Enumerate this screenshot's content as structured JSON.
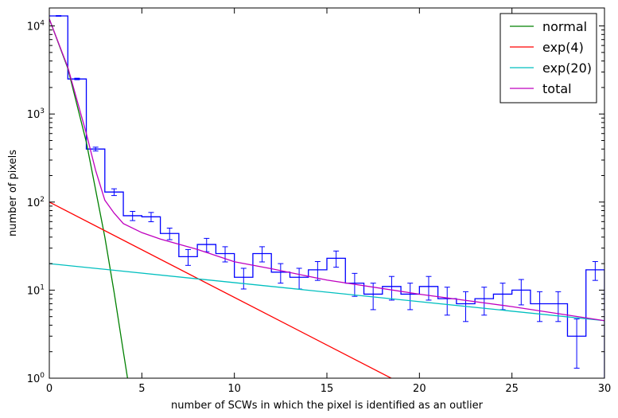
{
  "chart_data": {
    "type": "line",
    "title": "",
    "xlabel": "number of SCWs in which the pixel is identified as an outlier",
    "ylabel": "number of pixels",
    "xlim": [
      0,
      30
    ],
    "ylim": [
      1,
      16000
    ],
    "yscale": "log",
    "grid": false,
    "legend_position": "top-right",
    "x_ticks": [
      0,
      5,
      10,
      15,
      20,
      25,
      30
    ],
    "x_tick_labels": [
      "0",
      "5",
      "10",
      "15",
      "20",
      "25",
      "30"
    ],
    "y_ticks": [
      1,
      10,
      100,
      1000,
      10000
    ],
    "y_tick_labels": [
      {
        "base": "10",
        "exp": "0"
      },
      {
        "base": "10",
        "exp": "1"
      },
      {
        "base": "10",
        "exp": "2"
      },
      {
        "base": "10",
        "exp": "3"
      },
      {
        "base": "10",
        "exp": "4"
      }
    ],
    "histogram": {
      "color": "#0000ff",
      "bin_width": 1,
      "x": [
        0,
        1,
        2,
        3,
        4,
        5,
        6,
        7,
        8,
        9,
        10,
        11,
        12,
        13,
        14,
        15,
        16,
        17,
        18,
        19,
        20,
        21,
        22,
        23,
        24,
        25,
        26,
        27,
        28,
        29
      ],
      "values": [
        13000,
        2500,
        400,
        130,
        70,
        68,
        44,
        24,
        33,
        26,
        14,
        26,
        16,
        14,
        17,
        23,
        12,
        9,
        11,
        9,
        11,
        8,
        7,
        8,
        9,
        10,
        7,
        7,
        3,
        17
      ],
      "errors": [
        114,
        50,
        20,
        11.4,
        8.4,
        8.2,
        6.6,
        4.9,
        5.7,
        5.1,
        3.7,
        5.1,
        4,
        3.7,
        4.1,
        4.8,
        3.5,
        3,
        3.3,
        3,
        3.3,
        2.8,
        2.6,
        2.8,
        3,
        3.2,
        2.6,
        2.6,
        1.7,
        4.1
      ]
    },
    "series": [
      {
        "name": "normal",
        "color": "#008000",
        "x": [
          0,
          1,
          2,
          3,
          3.5,
          4,
          4.3
        ],
        "values": [
          12000,
          3300,
          480,
          40,
          9.5,
          2.0,
          0.8
        ]
      },
      {
        "name": "exp(4)",
        "color": "#ff0000",
        "x": [
          0,
          18.9
        ],
        "values": [
          100,
          0.9
        ]
      },
      {
        "name": "exp(20)",
        "color": "#00bfbf",
        "x": [
          0,
          30
        ],
        "values": [
          20,
          4.5
        ]
      },
      {
        "name": "total",
        "color": "#bf00bf",
        "x": [
          0,
          1,
          2,
          2.5,
          3,
          3.5,
          4,
          5,
          6,
          8,
          10,
          12,
          15,
          20,
          25,
          30
        ],
        "values": [
          12000,
          3400,
          600,
          230,
          105,
          75,
          57,
          45,
          38,
          29,
          21,
          17.5,
          13,
          9,
          6.5,
          4.5
        ]
      }
    ]
  }
}
